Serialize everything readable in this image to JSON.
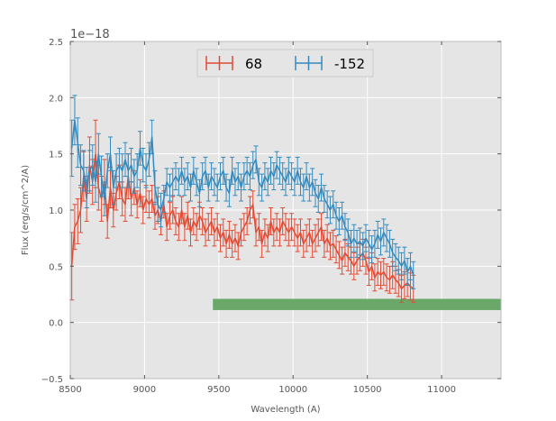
{
  "chart_data": {
    "type": "line",
    "title": "",
    "xlabel": "Wavelength (A)",
    "ylabel": "Flux (erg/s/cm^2/A)",
    "y_offset_text": "1e−18",
    "y_scale": 1e-18,
    "xlim": [
      8500,
      11400
    ],
    "ylim": [
      -0.5,
      2.5
    ],
    "xticks": [
      8500,
      9000,
      9500,
      10000,
      10500,
      11000
    ],
    "xtick_labels": [
      "8500",
      "9000",
      "9500",
      "10000",
      "10500",
      "11000"
    ],
    "yticks": [
      -0.5,
      0.0,
      0.5,
      1.0,
      1.5,
      2.0,
      2.5
    ],
    "ytick_labels": [
      "−0.5",
      "0.0",
      "0.5",
      "1.0",
      "1.5",
      "2.0",
      "2.5"
    ],
    "grid": true,
    "legend_position": "top-center",
    "background_color": "#e5e5e5",
    "series": [
      {
        "name": "68",
        "color": "#e24a33",
        "x_start": 8510,
        "x_step": 20,
        "values": [
          0.5,
          0.85,
          0.9,
          1.0,
          1.3,
          1.1,
          1.4,
          1.25,
          1.5,
          1.2,
          1.1,
          1.25,
          0.9,
          1.2,
          1.0,
          1.15,
          1.25,
          1.1,
          1.05,
          1.3,
          1.1,
          1.2,
          1.05,
          1.15,
          1.0,
          1.1,
          1.05,
          1.1,
          0.95,
          1.0,
          0.9,
          1.05,
          0.85,
          0.95,
          1.0,
          0.9,
          0.85,
          1.0,
          0.85,
          0.95,
          0.8,
          0.9,
          0.85,
          0.95,
          0.9,
          0.8,
          0.85,
          0.9,
          0.8,
          0.85,
          0.75,
          0.8,
          0.7,
          0.78,
          0.7,
          0.75,
          0.68,
          0.8,
          0.85,
          0.9,
          1.0,
          1.05,
          0.8,
          0.85,
          0.7,
          0.8,
          0.75,
          0.9,
          0.8,
          0.85,
          0.8,
          0.9,
          0.85,
          0.8,
          0.85,
          0.8,
          0.75,
          0.8,
          0.7,
          0.75,
          0.8,
          0.7,
          0.75,
          0.8,
          0.85,
          0.7,
          0.75,
          0.68,
          0.7,
          0.65,
          0.6,
          0.55,
          0.62,
          0.58,
          0.55,
          0.5,
          0.55,
          0.58,
          0.62,
          0.55,
          0.45,
          0.5,
          0.4,
          0.45,
          0.42,
          0.45,
          0.4,
          0.38,
          0.42,
          0.38,
          0.35,
          0.3,
          0.33,
          0.35,
          0.32,
          0.3
        ],
        "errors": [
          0.3,
          0.2,
          0.2,
          0.2,
          0.22,
          0.2,
          0.25,
          0.2,
          0.3,
          0.2,
          0.2,
          0.2,
          0.15,
          0.18,
          0.15,
          0.15,
          0.15,
          0.15,
          0.15,
          0.2,
          0.15,
          0.15,
          0.12,
          0.12,
          0.12,
          0.12,
          0.12,
          0.12,
          0.12,
          0.12,
          0.12,
          0.12,
          0.12,
          0.12,
          0.12,
          0.12,
          0.12,
          0.12,
          0.12,
          0.12,
          0.12,
          0.12,
          0.12,
          0.12,
          0.12,
          0.12,
          0.12,
          0.12,
          0.12,
          0.12,
          0.12,
          0.12,
          0.12,
          0.12,
          0.12,
          0.12,
          0.12,
          0.12,
          0.12,
          0.12,
          0.12,
          0.12,
          0.12,
          0.12,
          0.12,
          0.12,
          0.12,
          0.12,
          0.12,
          0.12,
          0.12,
          0.12,
          0.12,
          0.12,
          0.12,
          0.12,
          0.12,
          0.12,
          0.12,
          0.12,
          0.12,
          0.12,
          0.12,
          0.12,
          0.12,
          0.12,
          0.12,
          0.12,
          0.12,
          0.12,
          0.12,
          0.12,
          0.12,
          0.12,
          0.12,
          0.12,
          0.12,
          0.12,
          0.12,
          0.12,
          0.12,
          0.12,
          0.12,
          0.12,
          0.12,
          0.12,
          0.12,
          0.12,
          0.12,
          0.12,
          0.12,
          0.12,
          0.12,
          0.12,
          0.12,
          0.12
        ]
      },
      {
        "name": "-152",
        "color": "#348abd",
        "x_start": 8510,
        "x_step": 20,
        "values": [
          1.55,
          1.8,
          1.6,
          1.4,
          1.35,
          1.2,
          1.35,
          1.4,
          1.25,
          1.5,
          1.3,
          1.1,
          1.35,
          1.5,
          1.2,
          1.35,
          1.4,
          1.35,
          1.45,
          1.35,
          1.4,
          1.3,
          1.35,
          1.55,
          1.4,
          1.35,
          1.45,
          1.65,
          1.2,
          1.05,
          1.0,
          1.1,
          1.25,
          1.2,
          1.25,
          1.3,
          1.25,
          1.35,
          1.25,
          1.3,
          1.2,
          1.35,
          1.25,
          1.15,
          1.3,
          1.35,
          1.2,
          1.3,
          1.25,
          1.2,
          1.3,
          1.35,
          1.2,
          1.15,
          1.35,
          1.25,
          1.3,
          1.2,
          1.3,
          1.35,
          1.3,
          1.4,
          1.45,
          1.25,
          1.2,
          1.3,
          1.25,
          1.35,
          1.3,
          1.4,
          1.35,
          1.3,
          1.25,
          1.35,
          1.3,
          1.25,
          1.35,
          1.25,
          1.2,
          1.3,
          1.2,
          1.25,
          1.15,
          1.1,
          1.2,
          1.1,
          1.05,
          1.0,
          1.05,
          0.95,
          0.9,
          0.95,
          0.85,
          0.8,
          0.7,
          0.75,
          0.7,
          0.72,
          0.68,
          0.75,
          0.7,
          0.65,
          0.7,
          0.78,
          0.72,
          0.8,
          0.75,
          0.7,
          0.62,
          0.58,
          0.55,
          0.5,
          0.55,
          0.45,
          0.5,
          0.42
        ],
        "errors": [
          0.25,
          0.22,
          0.22,
          0.18,
          0.18,
          0.18,
          0.18,
          0.18,
          0.18,
          0.18,
          0.18,
          0.15,
          0.15,
          0.15,
          0.15,
          0.15,
          0.15,
          0.15,
          0.15,
          0.15,
          0.15,
          0.15,
          0.15,
          0.15,
          0.15,
          0.15,
          0.15,
          0.15,
          0.15,
          0.15,
          0.15,
          0.12,
          0.12,
          0.12,
          0.12,
          0.12,
          0.12,
          0.12,
          0.12,
          0.12,
          0.12,
          0.12,
          0.12,
          0.12,
          0.12,
          0.12,
          0.12,
          0.12,
          0.12,
          0.12,
          0.12,
          0.12,
          0.12,
          0.12,
          0.12,
          0.12,
          0.12,
          0.12,
          0.12,
          0.12,
          0.12,
          0.12,
          0.12,
          0.12,
          0.12,
          0.12,
          0.12,
          0.12,
          0.12,
          0.12,
          0.12,
          0.12,
          0.12,
          0.12,
          0.12,
          0.12,
          0.12,
          0.12,
          0.12,
          0.12,
          0.12,
          0.12,
          0.12,
          0.12,
          0.12,
          0.12,
          0.12,
          0.12,
          0.12,
          0.12,
          0.12,
          0.12,
          0.12,
          0.12,
          0.12,
          0.12,
          0.12,
          0.12,
          0.12,
          0.12,
          0.12,
          0.12,
          0.12,
          0.12,
          0.12,
          0.12,
          0.12,
          0.12,
          0.12,
          0.12,
          0.12,
          0.12,
          0.12,
          0.12,
          0.12,
          0.12
        ]
      }
    ],
    "bands": [
      {
        "name": "wavelength-coverage-band",
        "x_start": 9460,
        "x_end": 11400,
        "y_low": 0.11,
        "y_high": 0.21,
        "color": "#6aa86a"
      }
    ]
  }
}
